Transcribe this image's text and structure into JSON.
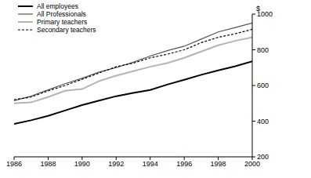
{
  "chart_data": {
    "type": "line",
    "x": [
      1986,
      1987,
      1988,
      1989,
      1990,
      1991,
      1992,
      1993,
      1994,
      1995,
      1996,
      1997,
      1998,
      1999,
      2000
    ],
    "series": [
      {
        "name": "All employees",
        "color": "#000000",
        "line_style": "solid",
        "values": [
          385,
          405,
          430,
          460,
          490,
          515,
          540,
          558,
          575,
          605,
          632,
          660,
          685,
          708,
          735
        ]
      },
      {
        "name": "All Professionals",
        "color": "#555555",
        "line_style": "solid",
        "values": [
          515,
          540,
          575,
          610,
          640,
          675,
          700,
          730,
          765,
          795,
          820,
          860,
          900,
          925,
          950
        ]
      },
      {
        "name": "Primary teachers",
        "color": "#b4b4b4",
        "line_style": "solid",
        "values": [
          500,
          505,
          535,
          570,
          580,
          625,
          655,
          680,
          705,
          725,
          755,
          790,
          825,
          850,
          870
        ]
      },
      {
        "name": "Secondary teachers",
        "color": "#000000",
        "line_style": "dashed",
        "values": [
          520,
          535,
          570,
          600,
          635,
          670,
          705,
          725,
          755,
          775,
          800,
          840,
          870,
          890,
          915
        ]
      }
    ],
    "xlim": [
      1986,
      2000
    ],
    "xticks": [
      1986,
      1988,
      1990,
      1992,
      1994,
      1996,
      1998,
      2000
    ],
    "ylim": [
      200,
      1000
    ],
    "yticks": [
      200,
      400,
      600,
      800,
      1000
    ],
    "y_label": "$",
    "grid": false,
    "legend": "top-left"
  }
}
